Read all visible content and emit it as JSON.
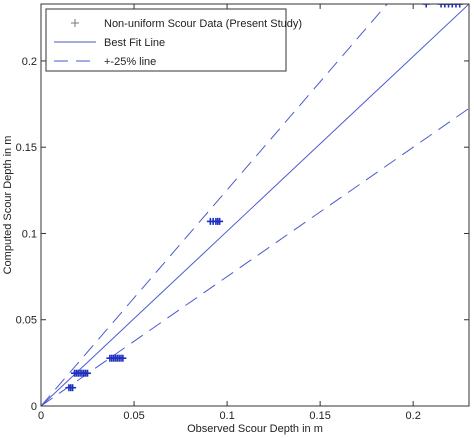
{
  "chart_data": {
    "type": "scatter",
    "title": "",
    "xlabel": "Observed Scour Depth in m",
    "ylabel": "Computed Scour Depth in m",
    "xlim": [
      0,
      0.23
    ],
    "ylim": [
      0,
      0.233
    ],
    "x_ticks": [
      0,
      0.05,
      0.1,
      0.15,
      0.2
    ],
    "x_tick_labels": [
      "0",
      "0.05",
      "0.1",
      "0.15",
      "0.2"
    ],
    "y_ticks": [
      0,
      0.05,
      0.1,
      0.15,
      0.2
    ],
    "y_tick_labels": [
      "0",
      "0.05",
      "0.1",
      "0.15",
      "0.2"
    ],
    "grid": false,
    "legend_position": "top-left",
    "series": [
      {
        "name": "Non-uniform Scour Data (Present Study)",
        "kind": "markers",
        "marker": "plus",
        "color": "#1f2fbf",
        "points": [
          [
            0.015,
            0.0106
          ],
          [
            0.016,
            0.0106
          ],
          [
            0.017,
            0.0106
          ],
          [
            0.018,
            0.019
          ],
          [
            0.019,
            0.019
          ],
          [
            0.02,
            0.019
          ],
          [
            0.021,
            0.019
          ],
          [
            0.022,
            0.019
          ],
          [
            0.023,
            0.019
          ],
          [
            0.024,
            0.019
          ],
          [
            0.025,
            0.019
          ],
          [
            0.037,
            0.0277
          ],
          [
            0.038,
            0.0277
          ],
          [
            0.039,
            0.0277
          ],
          [
            0.04,
            0.0277
          ],
          [
            0.041,
            0.0277
          ],
          [
            0.042,
            0.0277
          ],
          [
            0.043,
            0.0277
          ],
          [
            0.044,
            0.0277
          ],
          [
            0.091,
            0.107
          ],
          [
            0.0925,
            0.107
          ],
          [
            0.094,
            0.107
          ],
          [
            0.095,
            0.107
          ],
          [
            0.096,
            0.107
          ],
          [
            0.207,
            0.233
          ],
          [
            0.215,
            0.233
          ],
          [
            0.217,
            0.233
          ],
          [
            0.219,
            0.233
          ],
          [
            0.221,
            0.233
          ],
          [
            0.223,
            0.233
          ],
          [
            0.225,
            0.233
          ]
        ]
      },
      {
        "name": "Best Fit Line",
        "kind": "line",
        "color": "#4a5acf",
        "dash": "solid",
        "points": [
          [
            0,
            0
          ],
          [
            0.23,
            0.233
          ]
        ]
      },
      {
        "name": "+-25% line",
        "kind": "line",
        "color": "#4a5acf",
        "dash": "dashed",
        "points": [
          [
            0,
            0
          ],
          [
            0.186,
            0.233
          ]
        ]
      },
      {
        "name": "",
        "kind": "line",
        "color": "#4a5acf",
        "dash": "dashed",
        "points": [
          [
            0,
            0
          ],
          [
            0.23,
            0.1725
          ]
        ]
      }
    ]
  }
}
